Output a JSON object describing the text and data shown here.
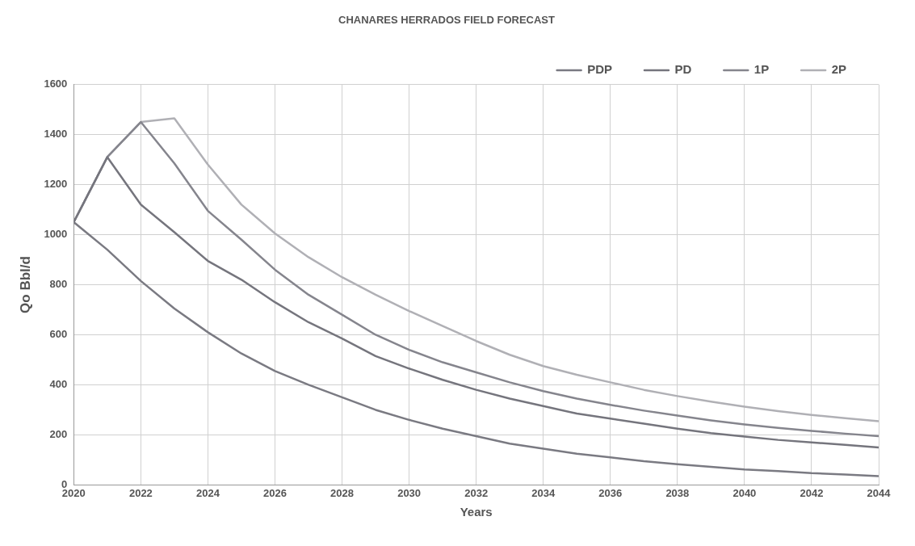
{
  "chart_data": {
    "type": "line",
    "title": "CHANARES HERRADOS FIELD FORECAST",
    "xlabel": "Years",
    "ylabel": "Qo Bbl/d",
    "x": [
      2020,
      2021,
      2022,
      2023,
      2024,
      2025,
      2026,
      2027,
      2028,
      2029,
      2030,
      2031,
      2032,
      2033,
      2034,
      2035,
      2036,
      2037,
      2038,
      2039,
      2040,
      2041,
      2042,
      2043,
      2044
    ],
    "series": [
      {
        "name": "PDP",
        "color": "#7a7a82",
        "values": [
          1050,
          940,
          815,
          705,
          610,
          525,
          455,
          400,
          350,
          300,
          260,
          225,
          195,
          165,
          145,
          125,
          110,
          95,
          83,
          72,
          62,
          55,
          47,
          42,
          35
        ]
      },
      {
        "name": "PD",
        "color": "#75757d",
        "values": [
          1050,
          1310,
          1120,
          1010,
          895,
          820,
          730,
          650,
          585,
          515,
          465,
          420,
          380,
          345,
          315,
          285,
          265,
          245,
          225,
          207,
          193,
          180,
          170,
          160,
          150
        ]
      },
      {
        "name": "1P",
        "color": "#85858d",
        "values": [
          1050,
          1310,
          1450,
          1285,
          1095,
          980,
          860,
          760,
          680,
          600,
          540,
          490,
          450,
          410,
          375,
          345,
          320,
          297,
          277,
          258,
          242,
          228,
          216,
          205,
          195
        ]
      },
      {
        "name": "2P",
        "color": "#b0b0b5",
        "values": [
          1050,
          1310,
          1450,
          1465,
          1280,
          1120,
          1005,
          910,
          830,
          760,
          695,
          635,
          575,
          520,
          475,
          440,
          410,
          380,
          355,
          333,
          313,
          295,
          280,
          267,
          255
        ]
      }
    ],
    "xlim": [
      2020,
      2044
    ],
    "xticks": [
      2020,
      2022,
      2024,
      2026,
      2028,
      2030,
      2032,
      2034,
      2036,
      2038,
      2040,
      2042,
      2044
    ],
    "ylim": [
      0,
      1600
    ],
    "yticks": [
      0,
      200,
      400,
      600,
      800,
      1000,
      1200,
      1400,
      1600
    ],
    "grid": true,
    "legend": "top right",
    "marker": "none",
    "line_style": "solid"
  }
}
